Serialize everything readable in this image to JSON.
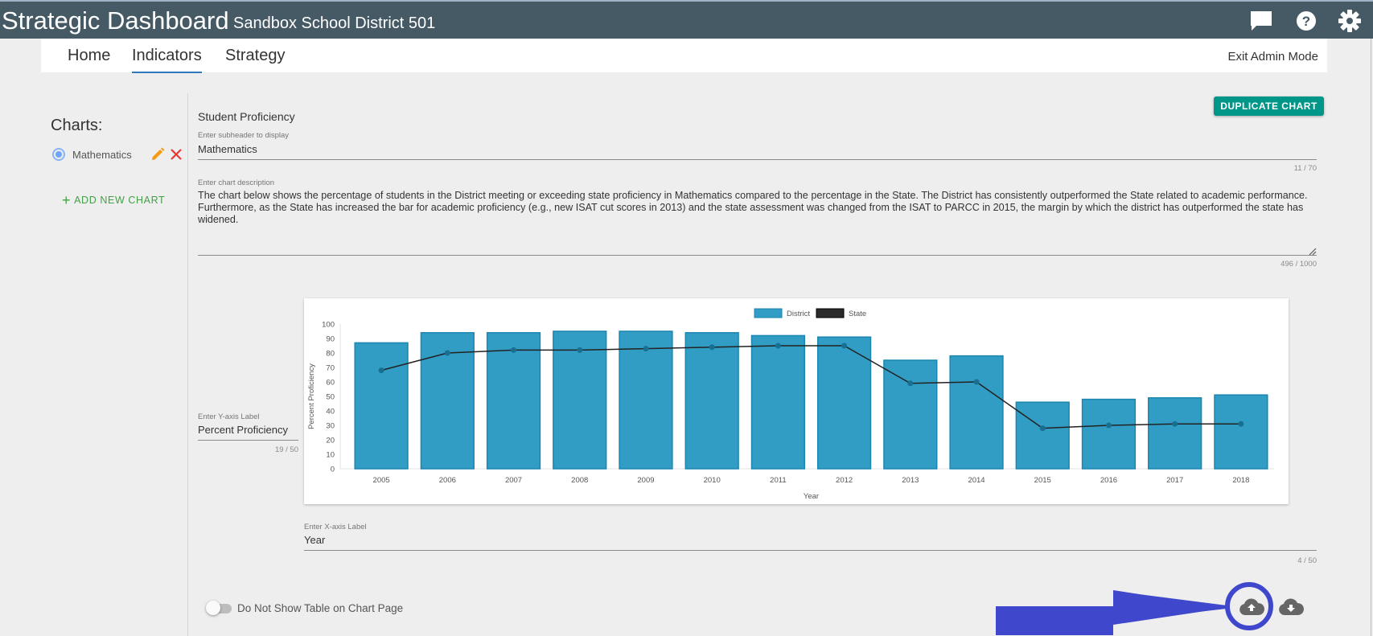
{
  "header": {
    "app_title": "Strategic Dashboard",
    "district_name": "Sandbox School District 501",
    "icons": [
      "chat-icon",
      "help-icon",
      "settings-gear-icon"
    ],
    "bg_color": "#455a64"
  },
  "nav": {
    "tabs": [
      {
        "label": "Home",
        "active": false
      },
      {
        "label": "Indicators",
        "active": true
      },
      {
        "label": "Strategy",
        "active": false
      }
    ],
    "exit_admin": "Exit Admin Mode"
  },
  "sidebar": {
    "heading": "Charts:",
    "items": [
      {
        "label": "Mathematics",
        "selected": true
      }
    ],
    "add_chart_label": "ADD NEW CHART"
  },
  "editor": {
    "duplicate_label": "DUPLICATE CHART",
    "section_title": "Student Proficiency",
    "subheader": {
      "label": "Enter subheader to display",
      "value": "Mathematics",
      "counter": "11 / 70"
    },
    "description": {
      "label": "Enter chart description",
      "value": "The chart below shows the percentage of students in the District meeting or exceeding state proficiency in Mathematics compared to the percentage in the State. The District has consistently outperformed the State related to academic performance. Furthermore, as the State has increased the bar for academic proficiency (e.g., new ISAT cut scores in 2013) and the state assessment was changed from the ISAT to PARCC in 2015, the margin by which the district has outperformed the state has widened.",
      "counter": "496 / 1000"
    },
    "y_axis": {
      "label": "Enter Y-axis Label",
      "value": "Percent Proficiency",
      "counter": "19 / 50"
    },
    "x_axis": {
      "label": "Enter X-axis Label",
      "value": "Year",
      "counter": "4 / 50"
    },
    "table_toggle": {
      "label": "Do Not Show Table on Chart Page",
      "on": false
    },
    "actions": {
      "upload_icon": "cloud-upload-icon",
      "download_icon": "cloud-download-icon"
    }
  },
  "chart_data": {
    "type": "bar",
    "categories": [
      "2005",
      "2006",
      "2007",
      "2008",
      "2009",
      "2010",
      "2011",
      "2012",
      "2013",
      "2014",
      "2015",
      "2016",
      "2017",
      "2018"
    ],
    "series": [
      {
        "name": "District",
        "type": "bar",
        "color": "#329dc4",
        "values": [
          87,
          94,
          94,
          95,
          95,
          94,
          92,
          91,
          75,
          78,
          46,
          48,
          49,
          51
        ]
      },
      {
        "name": "State",
        "type": "line",
        "color": "#222222",
        "values": [
          68,
          80,
          82,
          82,
          83,
          84,
          85,
          85,
          59,
          60,
          28,
          30,
          31,
          31
        ]
      }
    ],
    "title": "",
    "xlabel": "Year",
    "ylabel": "Percent Proficiency",
    "ylim": [
      0,
      100
    ],
    "yticks": [
      0,
      10,
      20,
      30,
      40,
      50,
      60,
      70,
      80,
      90,
      100
    ],
    "legend_position": "top",
    "grid": false
  }
}
